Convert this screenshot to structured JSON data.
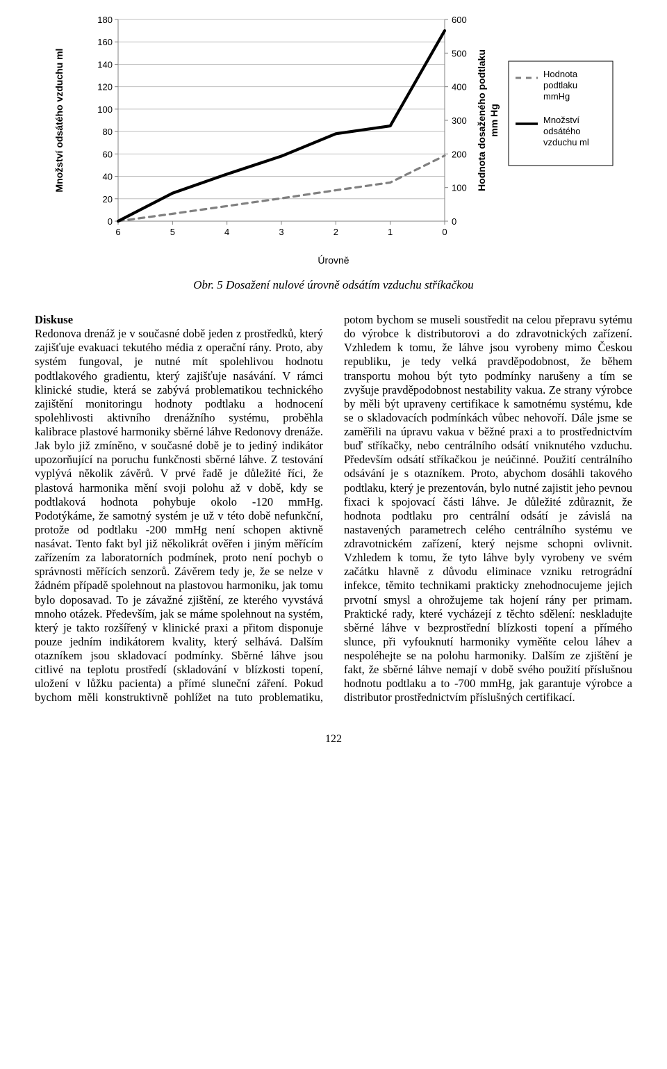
{
  "chart": {
    "type": "line",
    "x_categories": [
      "6",
      "5",
      "4",
      "3",
      "2",
      "1",
      "0"
    ],
    "series": [
      {
        "name": "Hodnota podtlaku mmHg",
        "axis": "right",
        "dash": "8 7",
        "width": 3.2,
        "color": "#808080",
        "values": [
          0,
          22,
          45,
          68,
          92,
          115,
          195
        ]
      },
      {
        "name": "Množství odsátého vzduchu ml",
        "axis": "left",
        "dash": "",
        "width": 4.2,
        "color": "#000000",
        "values": [
          0,
          25,
          42,
          58,
          78,
          85,
          170
        ]
      }
    ],
    "left_axis": {
      "label": "Množství odsátého vzduchu ml",
      "min": 0,
      "max": 180,
      "step": 20,
      "ticks": [
        0,
        20,
        40,
        60,
        80,
        100,
        120,
        140,
        160,
        180
      ]
    },
    "right_axis": {
      "label": "Hodnota dosaženého podtlaku mm Hg",
      "min": 0,
      "max": 600,
      "step": 100,
      "ticks": [
        0,
        100,
        200,
        300,
        400,
        500,
        600
      ]
    },
    "x_title": "Úrovně",
    "grid_color": "#bfbfbf",
    "axis_color": "#808080",
    "background": "#ffffff",
    "legend_items": [
      {
        "label": "Hodnota podtlaku mmHg",
        "dash": "8 7",
        "color": "#808080",
        "width": 3
      },
      {
        "label": "Množství odsátého vzduchu ml",
        "dash": "",
        "color": "#000000",
        "width": 3.5
      }
    ],
    "legend_border": "#000000",
    "axis_fontsize": 14,
    "tick_fontsize": 13,
    "font_family": "Arial"
  },
  "figure_caption": "Obr. 5 Dosažení nulové úrovně odsátím vzduchu stříkačkou",
  "discussion": {
    "heading": "Diskuse",
    "body": "Redonova drenáž je v současné době jeden z prostředků, který zajišťuje evakuaci tekutého média z operační rány. Proto, aby systém fungoval, je nutné mít spolehlivou hodnotu podtlakového gradientu, který zajišťuje nasávání. V rámci klinické studie, která se zabývá problematikou technického zajištění monitoringu hodnoty podtlaku a hodnocení spolehlivosti aktivního drenážního systému, proběhla kalibrace plastové harmoniky sběrné láhve Redonovy drenáže. Jak bylo již zmíněno, v současné době je to jediný indikátor upozorňující na poruchu funkčnosti sběrné láhve. Z testování vyplývá několik závěrů. V prvé řadě je důležité říci, že plastová harmonika mění svoji polohu až v době, kdy se podtlaková hodnota pohybuje okolo -120 mmHg. Podotýkáme, že samotný systém je už v této době nefunkční, protože od podtlaku -200 mmHg není schopen aktivně nasávat. Tento fakt byl již několikrát ověřen i jiným měřícím zařízením za laboratorních podmínek, proto není pochyb o správnosti měřících senzorů. Závěrem tedy je, že se nelze v žádném případě spolehnout na plastovou harmoniku, jak tomu bylo doposavad. To je závažné zjištění, ze kterého vyvstává mnoho otázek. Především, jak se máme spolehnout na systém, který je takto rozšířený v klinické praxi a přitom disponuje pouze jedním indikátorem kvality, který selhává. Dalším otazníkem jsou skladovací podmínky. Sběrné láhve jsou citlivé na teplotu prostředí (skladování v blízkosti topení, uložení v lůžku pacienta) a přímé sluneční záření. Pokud bychom měli konstruktivně pohlížet na tuto problematiku, potom bychom se museli soustředit na celou přepravu sytému do výrobce k distributorovi a do zdravotnických zařízení. Vzhledem k tomu, že láhve jsou vyrobeny mimo Českou republiku, je tedy velká pravděpodobnost, že během transportu mohou být tyto podmínky narušeny a tím se zvyšuje pravděpodobnost nestability vakua. Ze strany výrobce by měli být upraveny certifikace k samotnému systému, kde se o skladovacích podmínkách vůbec nehovoří. Dále jsme se zaměřili na úpravu vakua v běžné praxi a to prostřednictvím buď stříkačky, nebo centrálního odsátí vniknutého vzduchu. Především odsátí stříkačkou je neúčinné. Použití centrálního odsávání je s otazníkem. Proto, abychom dosáhli takového podtlaku, který je prezentován, bylo nutné zajistit jeho pevnou fixaci k spojovací části láhve. Je důležité zdůraznit, že hodnota podtlaku pro centrální odsátí je závislá na nastavených parametrech celého centrálního systému ve zdravotnickém zařízení, který nejsme schopni ovlivnit. Vzhledem k tomu, že tyto láhve byly vyrobeny ve svém začátku hlavně z důvodu eliminace vzniku retrográdní infekce, těmito technikami prakticky znehodnocujeme jejich prvotní smysl a ohrožujeme tak hojení rány per primam. Praktické rady, které vycházejí z těchto sdělení: neskladujte sběrné láhve v bezprostřední blízkosti topení a přímého slunce, při vyfouknutí harmoniky vyměňte celou láhev a nespoléhejte se na polohu harmoniky. Dalším ze zjištění je fakt, že sběrné láhve nemají v době svého použití příslušnou hodnotu podtlaku a to -700 mmHg, jak garantuje výrobce a distributor prostřednictvím příslušných certifikací."
  },
  "page_number": "122"
}
